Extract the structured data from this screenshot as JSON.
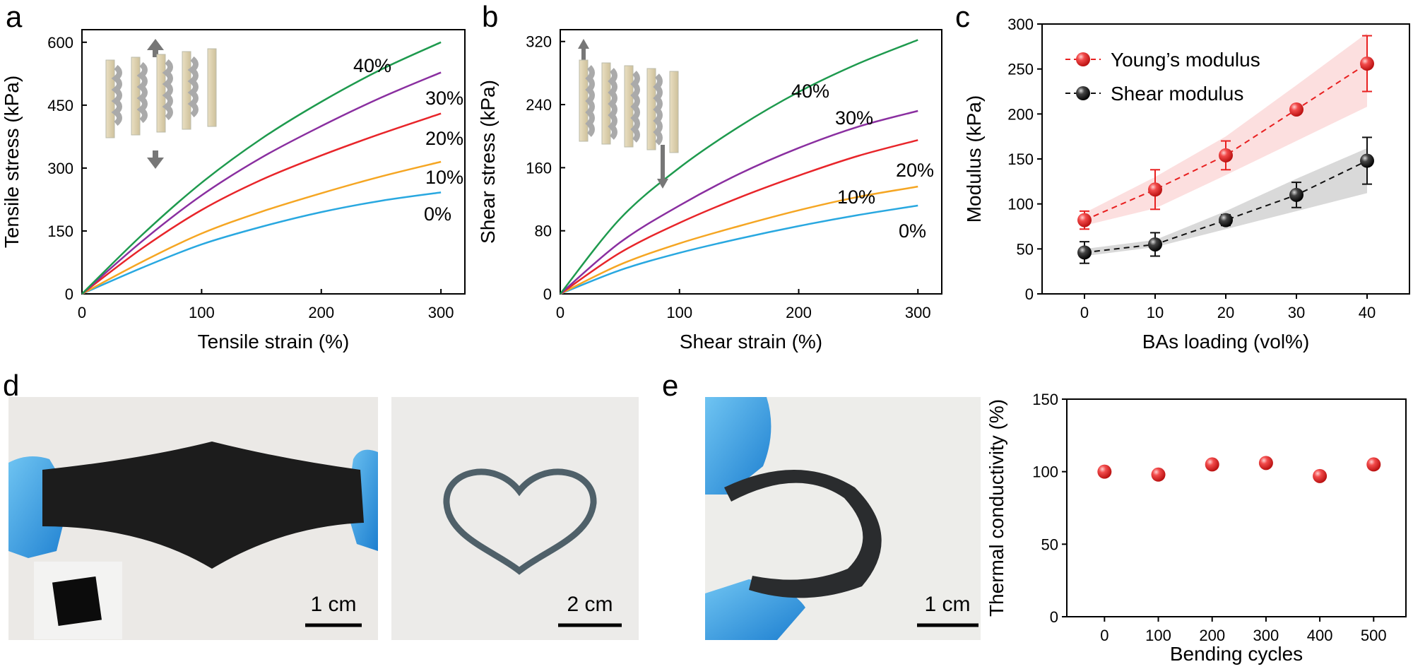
{
  "panels": {
    "a": "a",
    "b": "b",
    "c": "c",
    "d": "d",
    "e": "e"
  },
  "colors": {
    "c0": "#29a8e0",
    "c10": "#f5a623",
    "c20": "#e8252a",
    "c30": "#8a2fa0",
    "c40": "#1e9a4e",
    "young": "#e82020",
    "shear": "#111111"
  },
  "photos": {
    "d1_scale": "1 cm",
    "d2_scale": "2 cm",
    "e_scale": "1 cm",
    "icons": [
      "gloved-hand-stretching-black-film",
      "black-square-film-inset",
      "heart-shaped-film",
      "gloved-hand-bending-black-film"
    ]
  },
  "chart_data": [
    {
      "id": "a",
      "type": "line",
      "title": "",
      "xlabel": "Tensile strain (%)",
      "ylabel": "Tensile stress (kPa)",
      "xlim": [
        0,
        320
      ],
      "ylim": [
        0,
        630
      ],
      "xticks": [
        0,
        100,
        200,
        300
      ],
      "yticks": [
        0,
        150,
        300,
        450,
        600
      ],
      "series": [
        {
          "name": "0%",
          "color_key": "c0",
          "x": [
            0,
            50,
            100,
            150,
            200,
            250,
            300
          ],
          "values": [
            0,
            62,
            118,
            160,
            195,
            222,
            242
          ]
        },
        {
          "name": "10%",
          "color_key": "c10",
          "x": [
            0,
            50,
            100,
            150,
            200,
            250,
            300
          ],
          "values": [
            0,
            76,
            144,
            196,
            240,
            280,
            315
          ]
        },
        {
          "name": "20%",
          "color_key": "c20",
          "x": [
            0,
            50,
            100,
            150,
            200,
            250,
            300
          ],
          "values": [
            0,
            108,
            200,
            272,
            330,
            382,
            430
          ]
        },
        {
          "name": "30%",
          "color_key": "c30",
          "x": [
            0,
            50,
            100,
            150,
            200,
            250,
            300
          ],
          "values": [
            0,
            125,
            235,
            325,
            400,
            468,
            528
          ]
        },
        {
          "name": "40%",
          "color_key": "c40",
          "x": [
            0,
            50,
            100,
            150,
            200,
            250,
            300
          ],
          "values": [
            0,
            140,
            265,
            370,
            458,
            535,
            600
          ]
        }
      ]
    },
    {
      "id": "b",
      "type": "line",
      "title": "",
      "xlabel": "Shear strain (%)",
      "ylabel": "Shear stress (kPa)",
      "xlim": [
        0,
        320
      ],
      "ylim": [
        0,
        335
      ],
      "xticks": [
        0,
        100,
        200,
        300
      ],
      "yticks": [
        0,
        80,
        160,
        240,
        320
      ],
      "series": [
        {
          "name": "0%",
          "color_key": "c0",
          "x": [
            0,
            50,
            100,
            150,
            200,
            250,
            300
          ],
          "values": [
            0,
            30,
            52,
            70,
            86,
            100,
            112
          ]
        },
        {
          "name": "10%",
          "color_key": "c10",
          "x": [
            0,
            50,
            100,
            150,
            200,
            250,
            300
          ],
          "values": [
            0,
            37,
            64,
            86,
            106,
            123,
            136
          ]
        },
        {
          "name": "20%",
          "color_key": "c20",
          "x": [
            0,
            50,
            100,
            150,
            200,
            250,
            300
          ],
          "values": [
            0,
            52,
            90,
            122,
            150,
            175,
            195
          ]
        },
        {
          "name": "30%",
          "color_key": "c30",
          "x": [
            0,
            50,
            100,
            150,
            200,
            250,
            300
          ],
          "values": [
            0,
            65,
            112,
            152,
            185,
            212,
            232
          ]
        },
        {
          "name": "40%",
          "color_key": "c40",
          "x": [
            0,
            50,
            100,
            150,
            200,
            250,
            300
          ],
          "values": [
            0,
            95,
            160,
            212,
            256,
            292,
            322
          ]
        }
      ]
    },
    {
      "id": "c",
      "type": "scatter",
      "title": "",
      "xlabel": "BAs loading (vol%)",
      "ylabel": "Modulus (kPa)",
      "xlim": [
        -6,
        46
      ],
      "ylim": [
        0,
        300
      ],
      "xticks": [
        0,
        10,
        20,
        30,
        40
      ],
      "yticks": [
        0,
        50,
        100,
        150,
        200,
        250,
        300
      ],
      "legend": "top-left",
      "series": [
        {
          "name": "Young’s modulus",
          "color_key": "young",
          "x": [
            0,
            10,
            20,
            30,
            40
          ],
          "values": [
            82,
            116,
            154,
            205,
            256
          ],
          "err": [
            10,
            22,
            16,
            5,
            31
          ],
          "band_low": [
            76,
            95,
            132,
            170,
            208
          ],
          "band_high": [
            90,
            130,
            175,
            232,
            290
          ]
        },
        {
          "name": "Shear modulus",
          "color_key": "shear",
          "x": [
            0,
            10,
            20,
            30,
            40
          ],
          "values": [
            46,
            55,
            82,
            110,
            148
          ],
          "err": [
            12,
            13,
            6,
            14,
            26
          ],
          "band_low": [
            42,
            52,
            72,
            92,
            112
          ],
          "band_high": [
            50,
            60,
            92,
            128,
            162
          ]
        }
      ]
    },
    {
      "id": "e2",
      "type": "scatter",
      "title": "",
      "xlabel": "Bending cycles",
      "ylabel": "Thermal conductivity (%)",
      "xlim": [
        -70,
        560
      ],
      "ylim": [
        0,
        150
      ],
      "xticks": [
        0,
        100,
        200,
        300,
        400,
        500
      ],
      "yticks": [
        0,
        50,
        100,
        150
      ],
      "series": [
        {
          "color_key": "young",
          "x": [
            0,
            100,
            200,
            300,
            400,
            500
          ],
          "values": [
            100,
            98,
            105,
            106,
            97,
            105
          ]
        }
      ]
    }
  ]
}
